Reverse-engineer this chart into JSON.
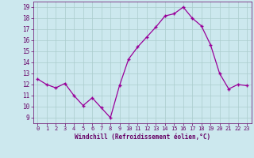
{
  "x": [
    0,
    1,
    2,
    3,
    4,
    5,
    6,
    7,
    8,
    9,
    10,
    11,
    12,
    13,
    14,
    15,
    16,
    17,
    18,
    19,
    20,
    21,
    22,
    23
  ],
  "y": [
    12.5,
    12.0,
    11.7,
    12.1,
    11.0,
    10.1,
    10.8,
    9.9,
    9.0,
    11.9,
    14.3,
    15.4,
    16.3,
    17.2,
    18.2,
    18.4,
    19.0,
    18.0,
    17.3,
    15.6,
    13.0,
    11.6,
    12.0,
    11.9
  ],
  "xlabel": "Windchill (Refroidissement éolien,°C)",
  "xticks": [
    0,
    1,
    2,
    3,
    4,
    5,
    6,
    7,
    8,
    9,
    10,
    11,
    12,
    13,
    14,
    15,
    16,
    17,
    18,
    19,
    20,
    21,
    22,
    23
  ],
  "yticks": [
    9,
    10,
    11,
    12,
    13,
    14,
    15,
    16,
    17,
    18,
    19
  ],
  "ylim": [
    8.5,
    19.5
  ],
  "xlim": [
    -0.5,
    23.5
  ],
  "line_color": "#990099",
  "marker": "+",
  "bg_color": "#cce8ee",
  "grid_color": "#aacccc",
  "label_color": "#660066",
  "tick_color": "#660066"
}
